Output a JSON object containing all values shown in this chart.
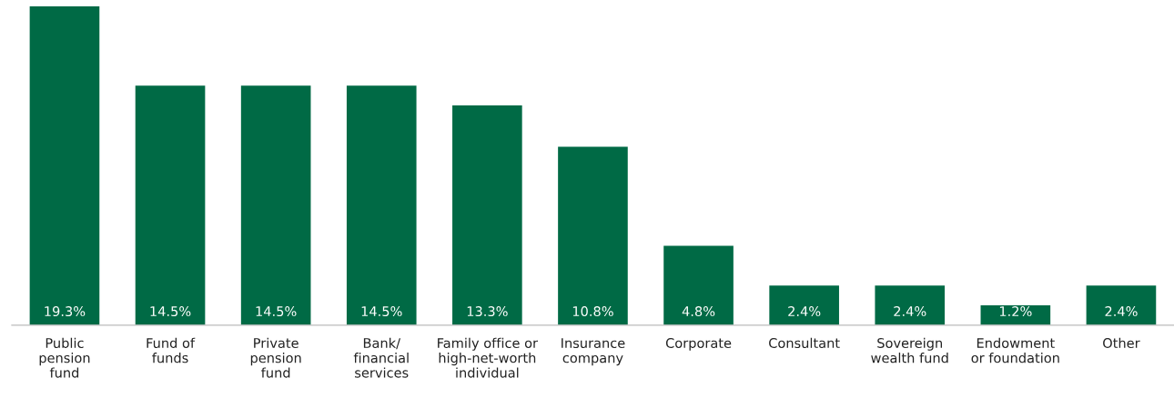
{
  "chart_data": {
    "type": "bar",
    "categories": [
      "Public\npension\nfund",
      "Fund of\nfunds",
      "Private\npension\nfund",
      "Bank/\nfinancial\nservices",
      "Family office or\nhigh-net-worth\nindividual",
      "Insurance\ncompany",
      "Corporate",
      "Consultant",
      "Sovereign\nwealth fund",
      "Endowment\nor foundation",
      "Other"
    ],
    "values": [
      19.3,
      14.5,
      14.5,
      14.5,
      13.3,
      10.8,
      4.8,
      2.4,
      2.4,
      1.2,
      2.4
    ],
    "value_labels": [
      "19.3%",
      "14.5%",
      "14.5%",
      "14.5%",
      "13.3%",
      "10.8%",
      "4.8%",
      "2.4%",
      "2.4%",
      "1.2%",
      "2.4%"
    ],
    "color": "#006a45",
    "grid": false,
    "legend": false
  }
}
